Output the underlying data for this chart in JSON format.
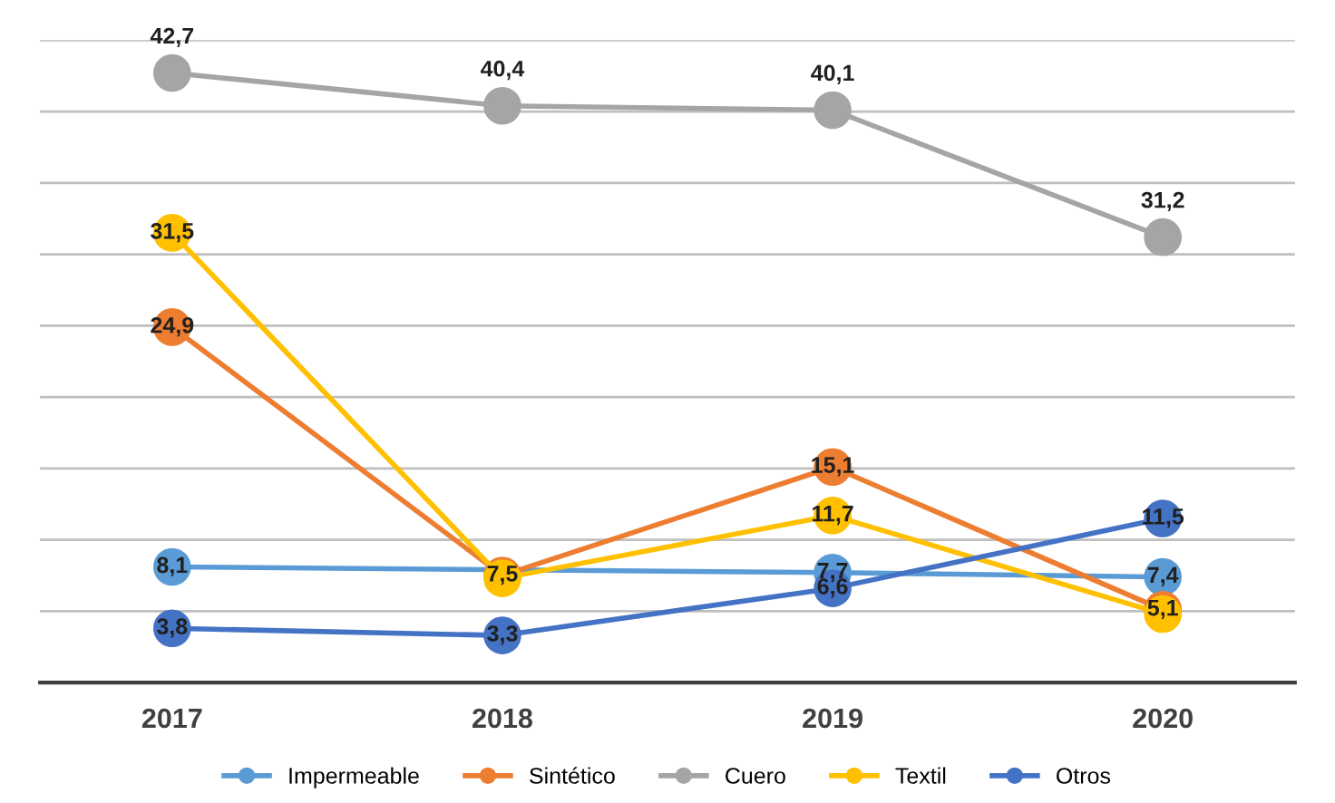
{
  "chart_data": {
    "type": "line",
    "categories": [
      "2017",
      "2018",
      "2019",
      "2020"
    ],
    "series": [
      {
        "name": "Impermeable",
        "color": "#5b9bd5",
        "values": [
          8.1,
          null,
          7.7,
          7.4
        ],
        "value_labels": [
          "8,1",
          null,
          "7,7",
          "7,4"
        ]
      },
      {
        "name": "Sintético",
        "color": "#ed7d31",
        "values": [
          24.9,
          7.5,
          15.1,
          5.1
        ],
        "value_labels": [
          "24,9",
          "7,5",
          "15,1",
          "5,1"
        ]
      },
      {
        "name": "Cuero",
        "color": "#a5a5a5",
        "values": [
          42.7,
          40.4,
          40.1,
          31.2
        ],
        "value_labels": [
          "42,7",
          "40,4",
          "40,1",
          "31,2"
        ]
      },
      {
        "name": "Textil",
        "color": "#ffc000",
        "values": [
          31.5,
          7.3,
          11.7,
          4.8
        ],
        "value_labels": [
          "31,5",
          null,
          "11,7",
          null
        ]
      },
      {
        "name": "Otros",
        "color": "#4472c4",
        "values": [
          3.8,
          3.3,
          6.6,
          11.5
        ],
        "value_labels": [
          "3,8",
          "3,3",
          "6,6",
          "11,5"
        ]
      }
    ],
    "ylim": [
      0,
      45
    ],
    "yticks": [
      {
        "value": 0,
        "label": null
      },
      {
        "value": 5,
        "label": null
      },
      {
        "value": 10,
        "label": null
      },
      {
        "value": 15,
        "label": null
      },
      {
        "value": 20,
        "label": null
      },
      {
        "value": 25,
        "label": null
      },
      {
        "value": 30,
        "label": null
      },
      {
        "value": 35,
        "label": null
      },
      {
        "value": 40,
        "label": null
      },
      {
        "value": 45,
        "label": null
      }
    ],
    "grid": "y",
    "legend": "bottom",
    "marker": "circle",
    "line_style": "solid"
  }
}
